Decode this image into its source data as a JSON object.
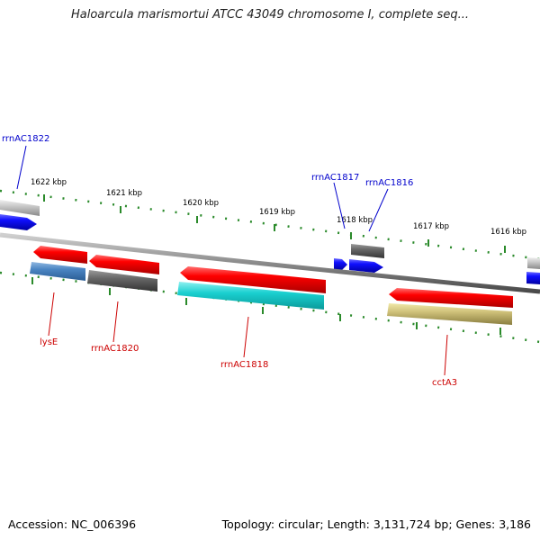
{
  "title": "Haloarcula marismortui ATCC 43049 chromosome I, complete seq...",
  "footer": {
    "accession": "Accession: NC_006396",
    "summary": "Topology: circular; Length: 3,131,724 bp; Genes: 3,186"
  },
  "colors": {
    "blue_label": "#0000cc",
    "red_label": "#cc0000",
    "tick": "#2a8a2a",
    "backbone": "#888888"
  },
  "scale_labels": [
    "1622 kbp",
    "1621 kbp",
    "1620 kbp",
    "1619 kbp",
    "1618 kbp",
    "1617 kbp",
    "1616 kbp"
  ],
  "features": [
    {
      "name": "rrnAC1822",
      "strand": "forward",
      "color": "#0000cc"
    },
    {
      "name": "rrnAC1817",
      "strand": "forward",
      "color": "#0000cc"
    },
    {
      "name": "rrnAC1816",
      "strand": "forward",
      "color": "#0000cc"
    },
    {
      "name": "lysE",
      "strand": "reverse",
      "color": "#cc0000"
    },
    {
      "name": "rrnAC1820",
      "strand": "reverse",
      "color": "#cc0000"
    },
    {
      "name": "rrnAC1818",
      "strand": "reverse",
      "color": "#cc0000"
    },
    {
      "name": "cctA3",
      "strand": "reverse",
      "color": "#cc0000"
    }
  ]
}
